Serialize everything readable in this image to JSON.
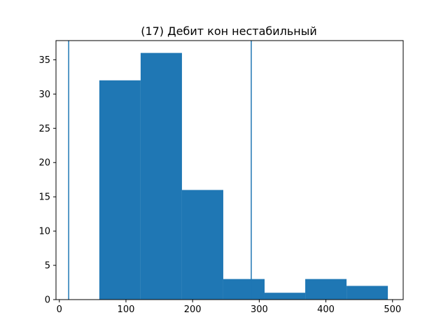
{
  "chart_data": {
    "type": "bar",
    "subtype": "histogram",
    "title": "(17) Дебит кон нестабильный",
    "xlabel": "",
    "ylabel": "",
    "xlim": [
      -5,
      516
    ],
    "ylim": [
      0,
      37.8
    ],
    "bin_edges": [
      60,
      122,
      184,
      246,
      308,
      369,
      431,
      493
    ],
    "counts": [
      32,
      36,
      16,
      3,
      1,
      3,
      2
    ],
    "vertical_lines": [
      14,
      288
    ],
    "x_ticks": [
      0,
      100,
      200,
      300,
      400,
      500
    ],
    "y_ticks": [
      0,
      5,
      10,
      15,
      20,
      25,
      30,
      35
    ],
    "grid": false,
    "legend": "none",
    "bar_color": "#1f77b4",
    "line_color": "#1f77b4"
  }
}
